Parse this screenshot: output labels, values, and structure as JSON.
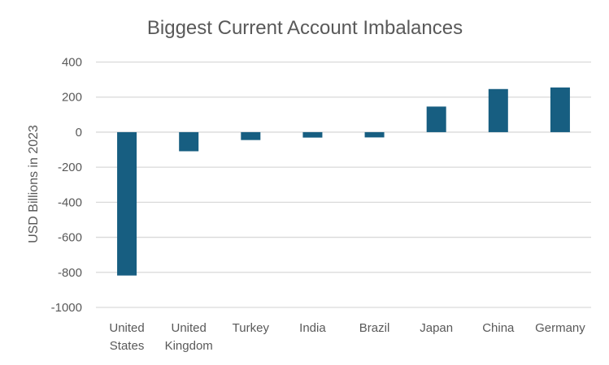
{
  "chart_data": {
    "type": "bar",
    "title": "Biggest Current Account Imbalances",
    "xlabel": "",
    "ylabel": "USD Billions in 2023",
    "ylim": [
      -1000,
      400
    ],
    "yticks": [
      400,
      200,
      0,
      -200,
      -400,
      -600,
      -800,
      -1000
    ],
    "ytick_labels": [
      "400",
      "200",
      "0",
      "-200",
      "-400",
      "-600",
      "-800",
      "-1000"
    ],
    "grid": true,
    "categories": [
      "United States",
      "United Kingdom",
      "Turkey",
      "India",
      "Brazil",
      "Japan",
      "China",
      "Germany"
    ],
    "category_lines": [
      [
        "United",
        "States"
      ],
      [
        "United",
        "Kingdom"
      ],
      [
        "Turkey"
      ],
      [
        "India"
      ],
      [
        "Brazil"
      ],
      [
        "Japan"
      ],
      [
        "China"
      ],
      [
        "Germany"
      ]
    ],
    "values": [
      -818,
      -109,
      -45,
      -31,
      -30,
      146,
      246,
      255
    ],
    "bar_color": "#175E81",
    "grid_color": "#D9D9D9"
  }
}
